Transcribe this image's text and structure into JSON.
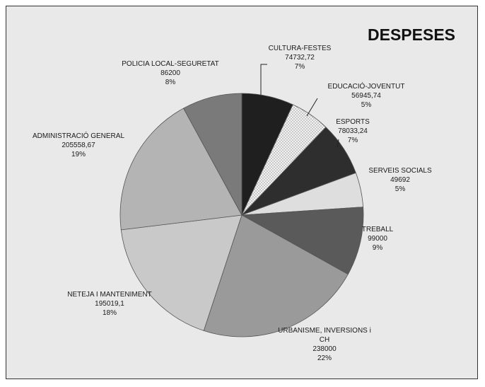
{
  "chart_data": {
    "type": "pie",
    "title": "DESPESES",
    "slices": [
      {
        "name": "CULTURA-FESTES",
        "value_label": "74732,72",
        "value": 74732.72,
        "percent_label": "7%",
        "color": "#1f1f1f",
        "pattern": "none"
      },
      {
        "name": "EDUCACIÓ-JOVENTUT",
        "value_label": "56945,74",
        "value": 56945.74,
        "percent_label": "5%",
        "color": "#efefef",
        "pattern": "dots"
      },
      {
        "name": "ESPORTS",
        "value_label": "78033,24",
        "value": 78033.24,
        "percent_label": "7%",
        "color": "#2e2e2e",
        "pattern": "none"
      },
      {
        "name": "SERVEIS SOCIALS",
        "value_label": "49692",
        "value": 49692,
        "percent_label": "5%",
        "color": "#dedede",
        "pattern": "none"
      },
      {
        "name": "TREBALL",
        "value_label": "99000",
        "value": 99000,
        "percent_label": "9%",
        "color": "#5a5a5a",
        "pattern": "none"
      },
      {
        "name": "URBANISME, INVERSIONS i CH",
        "value_label": "238000",
        "value": 238000,
        "percent_label": "22%",
        "color": "#9a9a9a",
        "pattern": "none"
      },
      {
        "name": "NETEJA I MANTENIMENT",
        "value_label": "195019,1",
        "value": 195019.1,
        "percent_label": "18%",
        "color": "#c9c9c9",
        "pattern": "none"
      },
      {
        "name": "ADMINISTRACIÓ GENERAL",
        "value_label": "205558,67",
        "value": 205558.67,
        "percent_label": "19%",
        "color": "#b4b4b4",
        "pattern": "none"
      },
      {
        "name": "POLICIA LOCAL-SEGURETAT",
        "value_label": "86200",
        "value": 86200,
        "percent_label": "8%",
        "color": "#7a7a7a",
        "pattern": "none"
      }
    ]
  }
}
